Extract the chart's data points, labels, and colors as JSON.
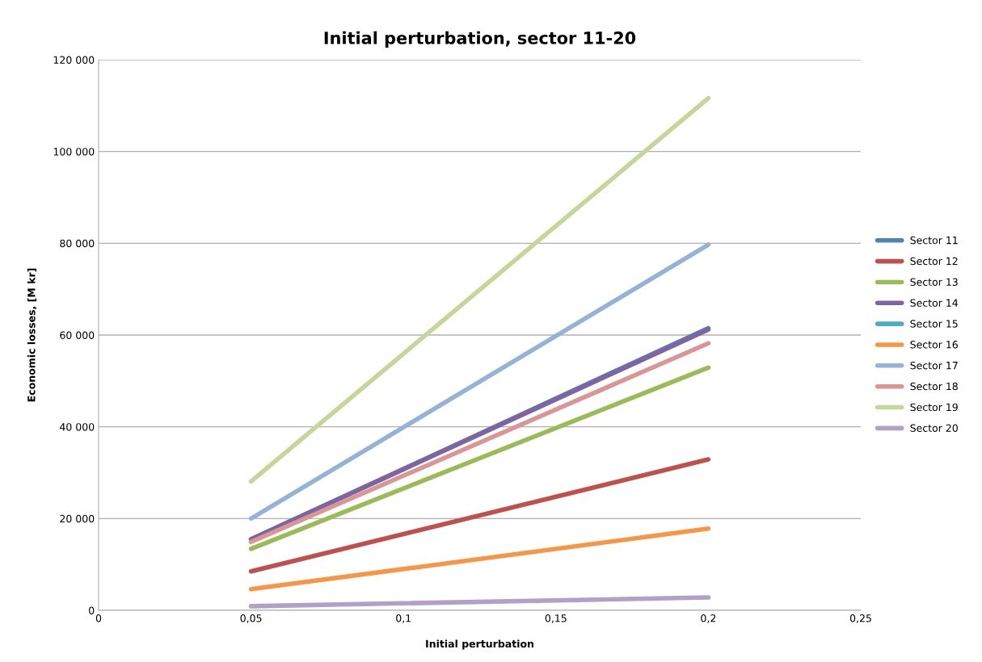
{
  "chart_data": {
    "type": "line",
    "title": "Initial perturbation, sector 11-20",
    "xlabel": "Initial perturbation",
    "ylabel": "Economic losses, [M kr]",
    "x": [
      0.05,
      0.2
    ],
    "xlim": [
      0,
      0.25
    ],
    "xticks": [
      0,
      {
        "value": 0.05,
        "label": "0,05"
      },
      {
        "value": 0.1,
        "label": "0,1"
      },
      {
        "value": 0.15,
        "label": "0,15"
      },
      {
        "value": 0.2,
        "label": "0,2"
      },
      {
        "value": 0.25,
        "label": "0,25"
      }
    ],
    "ylim": [
      0,
      120000
    ],
    "yticks": [
      0,
      {
        "value": 20000,
        "label": "20 000"
      },
      {
        "value": 40000,
        "label": "40 000"
      },
      {
        "value": 60000,
        "label": "60 000"
      },
      {
        "value": 80000,
        "label": "80 000"
      },
      {
        "value": 100000,
        "label": "100 000"
      },
      {
        "value": 120000,
        "label": "120 000"
      }
    ],
    "grid": "y",
    "legend": "right",
    "marker": "none",
    "line_style": "solid",
    "series": [
      {
        "name": "Sector 11",
        "color": "#4f81bd",
        "values": [
          15500,
          61500
        ]
      },
      {
        "name": "Sector 12",
        "color": "#c0504d",
        "values": [
          8500,
          32900
        ]
      },
      {
        "name": "Sector 13",
        "color": "#9bbb59",
        "values": [
          13400,
          52900
        ]
      },
      {
        "name": "Sector 14",
        "color": "#8064a2",
        "values": [
          15500,
          61200
        ]
      },
      {
        "name": "Sector 15",
        "color": "#4bacc6",
        "values": [
          null,
          null
        ]
      },
      {
        "name": "Sector 16",
        "color": "#f79646",
        "values": [
          4600,
          17800
        ]
      },
      {
        "name": "Sector 17",
        "color": "#95b3d7",
        "values": [
          20000,
          79700
        ]
      },
      {
        "name": "Sector 18",
        "color": "#da9694",
        "values": [
          14900,
          58200
        ]
      },
      {
        "name": "Sector 19",
        "color": "#c4d79b",
        "values": [
          28100,
          111600
        ]
      },
      {
        "name": "Sector 20",
        "color": "#b1a0c7",
        "values": [
          900,
          2800
        ]
      }
    ]
  }
}
